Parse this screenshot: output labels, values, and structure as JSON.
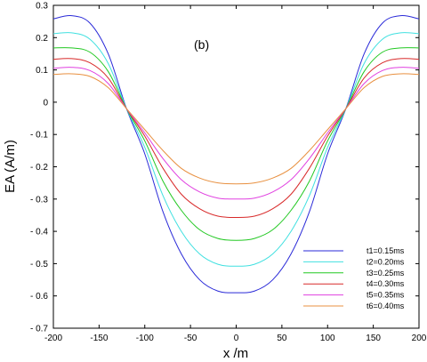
{
  "chart_data": {
    "type": "line",
    "panel_label": "(b)",
    "xlabel": "x /m",
    "ylabel": "EA (A/m)",
    "xlim": [
      -200,
      200
    ],
    "ylim": [
      -0.7,
      0.3
    ],
    "xticks": [
      -200,
      -150,
      -100,
      -50,
      0,
      50,
      100,
      150,
      200
    ],
    "yticks": [
      0.3,
      0.2,
      0.1,
      0,
      -0.1,
      -0.2,
      -0.3,
      -0.4,
      -0.5,
      -0.6,
      -0.7
    ],
    "xtick_labels": [
      "-200",
      "-150",
      "-100",
      "-50",
      "0",
      "50",
      "100",
      "150",
      "200"
    ],
    "ytick_labels": [
      "0.3",
      "0.2",
      "0.1",
      "0",
      "- 0.1",
      "- 0.2",
      "- 0.3",
      "- 0.4",
      "- 0.5",
      "- 0.6",
      "- 0.7"
    ],
    "grid": false,
    "legend_position": "bottom-right",
    "x": [
      -200,
      -180,
      -160,
      -140,
      -120,
      -100,
      -80,
      -60,
      -40,
      -20,
      0,
      20,
      40,
      60,
      80,
      100,
      120,
      140,
      160,
      180,
      200
    ],
    "series": [
      {
        "name": "t1=0.15ms",
        "color": "#2a2ad8",
        "values": [
          0.258,
          0.268,
          0.245,
          0.15,
          -0.02,
          -0.16,
          -0.34,
          -0.47,
          -0.55,
          -0.585,
          -0.59,
          -0.585,
          -0.55,
          -0.47,
          -0.34,
          -0.16,
          -0.02,
          0.15,
          0.245,
          0.268,
          0.258
        ]
      },
      {
        "name": "t2=0.20ms",
        "color": "#40e0e0",
        "values": [
          0.212,
          0.215,
          0.195,
          0.12,
          -0.02,
          -0.14,
          -0.29,
          -0.4,
          -0.47,
          -0.502,
          -0.508,
          -0.502,
          -0.47,
          -0.4,
          -0.29,
          -0.14,
          -0.02,
          0.12,
          0.195,
          0.215,
          0.212
        ]
      },
      {
        "name": "t3=0.25ms",
        "color": "#22c822",
        "values": [
          0.168,
          0.168,
          0.155,
          0.095,
          -0.02,
          -0.12,
          -0.245,
          -0.335,
          -0.395,
          -0.422,
          -0.428,
          -0.422,
          -0.395,
          -0.335,
          -0.245,
          -0.12,
          -0.02,
          0.095,
          0.155,
          0.168,
          0.168
        ]
      },
      {
        "name": "t4=0.30ms",
        "color": "#d82a2a",
        "values": [
          0.133,
          0.135,
          0.122,
          0.075,
          -0.02,
          -0.105,
          -0.205,
          -0.285,
          -0.33,
          -0.353,
          -0.357,
          -0.353,
          -0.33,
          -0.285,
          -0.205,
          -0.105,
          -0.02,
          0.075,
          0.122,
          0.135,
          0.133
        ]
      },
      {
        "name": "t5=0.35ms",
        "color": "#e040e0",
        "values": [
          0.105,
          0.108,
          0.098,
          0.058,
          -0.02,
          -0.095,
          -0.175,
          -0.24,
          -0.278,
          -0.297,
          -0.3,
          -0.297,
          -0.278,
          -0.24,
          -0.175,
          -0.095,
          -0.02,
          0.058,
          0.098,
          0.108,
          0.105
        ]
      },
      {
        "name": "t6=0.40ms",
        "color": "#e89040",
        "values": [
          0.086,
          0.088,
          0.08,
          0.045,
          -0.02,
          -0.085,
          -0.15,
          -0.205,
          -0.235,
          -0.25,
          -0.253,
          -0.25,
          -0.235,
          -0.205,
          -0.15,
          -0.085,
          -0.02,
          0.045,
          0.08,
          0.088,
          0.086
        ]
      }
    ]
  }
}
